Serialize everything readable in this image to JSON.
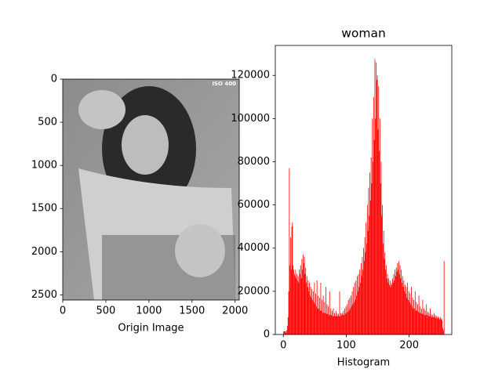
{
  "chart_data": [
    {
      "type": "image",
      "xlabel": "Origin Image",
      "annotation": "ISO 400",
      "xlim": [
        0,
        2048
      ],
      "ylim": [
        2560,
        0
      ],
      "xticks": [
        0,
        500,
        1000,
        1500,
        2000
      ],
      "yticks": [
        0,
        500,
        1000,
        1500,
        2000,
        2500
      ]
    },
    {
      "type": "histogram",
      "title": "woman",
      "xlabel": "Histogram",
      "color": "#ff0000",
      "xlim": [
        -12.75,
        267.75
      ],
      "ylim": [
        0,
        133875
      ],
      "xticks": [
        0,
        100,
        200
      ],
      "yticks": [
        0,
        20000,
        40000,
        60000,
        80000,
        100000,
        120000
      ],
      "bins": [
        0,
        1,
        2,
        3,
        4,
        5,
        6,
        7,
        8,
        9,
        10,
        11,
        12,
        13,
        14,
        15,
        16,
        17,
        18,
        19,
        20,
        21,
        22,
        23,
        24,
        25,
        26,
        27,
        28,
        29,
        30,
        31,
        32,
        33,
        34,
        35,
        36,
        37,
        38,
        39,
        40,
        41,
        42,
        43,
        44,
        45,
        46,
        47,
        48,
        49,
        50,
        51,
        52,
        53,
        54,
        55,
        56,
        57,
        58,
        59,
        60,
        61,
        62,
        63,
        64,
        65,
        66,
        67,
        68,
        69,
        70,
        71,
        72,
        73,
        74,
        75,
        76,
        77,
        78,
        79,
        80,
        81,
        82,
        83,
        84,
        85,
        86,
        87,
        88,
        89,
        90,
        91,
        92,
        93,
        94,
        95,
        96,
        97,
        98,
        99,
        100,
        101,
        102,
        103,
        104,
        105,
        106,
        107,
        108,
        109,
        110,
        111,
        112,
        113,
        114,
        115,
        116,
        117,
        118,
        119,
        120,
        121,
        122,
        123,
        124,
        125,
        126,
        127,
        128,
        129,
        130,
        131,
        132,
        133,
        134,
        135,
        136,
        137,
        138,
        139,
        140,
        141,
        142,
        143,
        144,
        145,
        146,
        147,
        148,
        149,
        150,
        151,
        152,
        153,
        154,
        155,
        156,
        157,
        158,
        159,
        160,
        161,
        162,
        163,
        164,
        165,
        166,
        167,
        168,
        169,
        170,
        171,
        172,
        173,
        174,
        175,
        176,
        177,
        178,
        179,
        180,
        181,
        182,
        183,
        184,
        185,
        186,
        187,
        188,
        189,
        190,
        191,
        192,
        193,
        194,
        195,
        196,
        197,
        198,
        199,
        200,
        201,
        202,
        203,
        204,
        205,
        206,
        207,
        208,
        209,
        210,
        211,
        212,
        213,
        214,
        215,
        216,
        217,
        218,
        219,
        220,
        221,
        222,
        223,
        224,
        225,
        226,
        227,
        228,
        229,
        230,
        231,
        232,
        233,
        234,
        235,
        236,
        237,
        238,
        239,
        240,
        241,
        242,
        243,
        244,
        245,
        246,
        247,
        248,
        249,
        250,
        251,
        252,
        253,
        254,
        255,
        256
      ],
      "values": [
        1500,
        1500,
        1500,
        1500,
        800,
        2000,
        4000,
        8000,
        20000,
        77000,
        32000,
        45000,
        30000,
        50000,
        52000,
        32000,
        30000,
        28000,
        27000,
        30000,
        26000,
        28000,
        25000,
        27000,
        24000,
        30000,
        28000,
        32000,
        26000,
        35000,
        30000,
        37000,
        33000,
        36000,
        28000,
        31000,
        24000,
        27000,
        22000,
        25000,
        20000,
        24000,
        18000,
        22000,
        17000,
        21000,
        16000,
        20000,
        15000,
        24000,
        14000,
        19000,
        13000,
        25000,
        12000,
        18000,
        12000,
        17000,
        11000,
        24000,
        11000,
        16000,
        10000,
        18000,
        10000,
        15000,
        10000,
        22000,
        9500,
        14000,
        9500,
        13000,
        9000,
        20000,
        9000,
        12000,
        9000,
        11000,
        8500,
        12000,
        8500,
        10000,
        8500,
        11000,
        8500,
        10000,
        8500,
        9500,
        8500,
        20000,
        8500,
        10000,
        9000,
        10000,
        9000,
        11000,
        9000,
        12000,
        9500,
        13000,
        10000,
        14000,
        10500,
        16000,
        11000,
        17000,
        12000,
        18000,
        13000,
        20000,
        14000,
        22000,
        15000,
        24000,
        16000,
        25000,
        18000,
        27000,
        20000,
        28000,
        22000,
        30000,
        24000,
        33000,
        27000,
        36000,
        30000,
        40000,
        34000,
        45000,
        38000,
        52000,
        42000,
        60000,
        48000,
        68000,
        55000,
        75000,
        62000,
        82000,
        70000,
        100000,
        80000,
        110000,
        90000,
        127500,
        100000,
        126000,
        118000,
        120000,
        95000,
        115000,
        85000,
        100000,
        70000,
        80000,
        55000,
        60000,
        42000,
        48000,
        35000,
        38000,
        30000,
        32000,
        26000,
        28000,
        24000,
        26000,
        23000,
        25000,
        22000,
        24000,
        23000,
        26000,
        24000,
        28000,
        25000,
        30000,
        27000,
        31000,
        29000,
        33000,
        30000,
        34000,
        28000,
        32000,
        26000,
        30000,
        24000,
        27000,
        22000,
        25000,
        20000,
        23000,
        19000,
        22000,
        17000,
        24000,
        16000,
        20000,
        15000,
        19000,
        14000,
        22000,
        13000,
        17000,
        12000,
        16000,
        12000,
        20000,
        11000,
        15000,
        11000,
        14000,
        10500,
        18000,
        10000,
        13000,
        10000,
        12000,
        9500,
        16000,
        9500,
        12000,
        9000,
        11000,
        9000,
        14000,
        9000,
        10500,
        8500,
        10000,
        8500,
        12000,
        8500,
        9500,
        8000,
        9000,
        8000,
        10000,
        8000,
        9000,
        7500,
        8500,
        7500,
        8500,
        7500,
        8000,
        7000,
        8000,
        7000,
        7500,
        6500,
        3000,
        2000,
        34000
      ]
    }
  ]
}
